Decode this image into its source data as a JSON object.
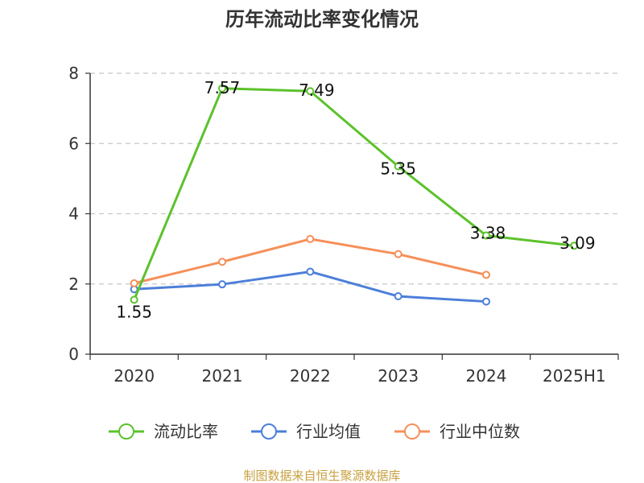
{
  "chart_data": {
    "type": "line",
    "title": "历年流动比率变化情况",
    "xlabel": "",
    "ylabel": "",
    "categories": [
      "2020",
      "2021",
      "2022",
      "2023",
      "2024",
      "2025H1"
    ],
    "ylim": [
      0,
      8
    ],
    "yticks": [
      "0",
      "2",
      "4",
      "6",
      "8"
    ],
    "grid": true,
    "legend_position": "bottom",
    "series": [
      {
        "name": "流动比率",
        "color": "#5cc22c",
        "values": [
          1.55,
          7.57,
          7.49,
          5.35,
          3.38,
          3.09
        ],
        "labels": [
          "1.55",
          "7.57",
          "7.49",
          "5.35",
          "3.38",
          "3.09"
        ]
      },
      {
        "name": "行业均值",
        "color": "#4d7fd9",
        "values": [
          1.85,
          1.99,
          2.35,
          1.65,
          1.5,
          null
        ]
      },
      {
        "name": "行业中位数",
        "color": "#f5905a",
        "values": [
          2.02,
          2.63,
          3.28,
          2.85,
          2.26,
          null
        ]
      }
    ]
  },
  "source": "制图数据来自恒生聚源数据库"
}
